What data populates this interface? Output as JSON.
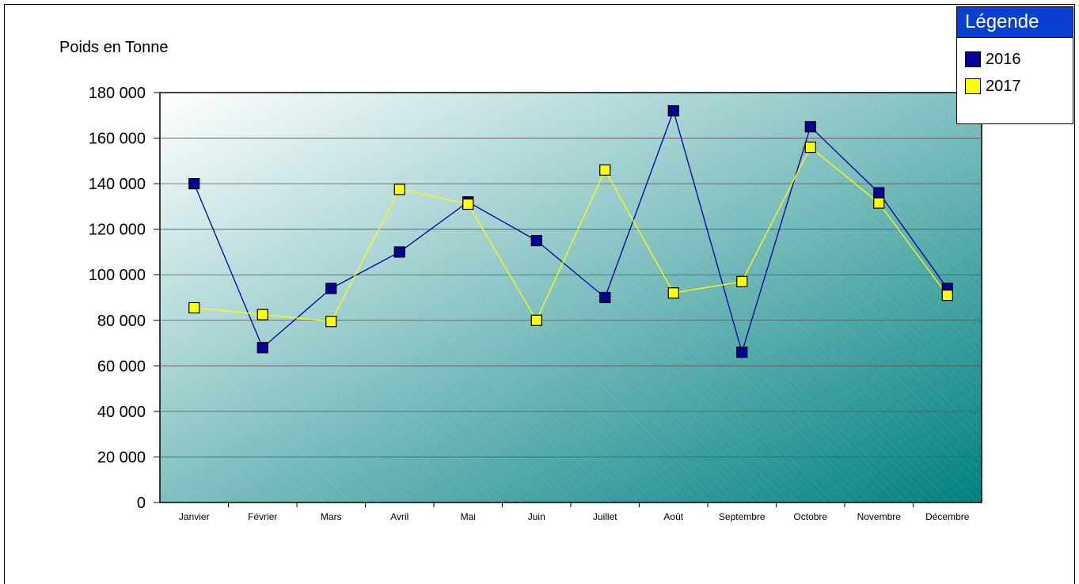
{
  "chart_data": {
    "type": "line",
    "ylabel": "Poids en Tonne",
    "categories": [
      "Janvier",
      "Février",
      "Mars",
      "Avril",
      "Mai",
      "Juin",
      "Juillet",
      "Août",
      "Septembre",
      "Octobre",
      "Novembre",
      "Décembre"
    ],
    "y_ticks": [
      "0",
      "20 000",
      "40 000",
      "60 000",
      "80 000",
      "100 000",
      "120 000",
      "140 000",
      "160 000",
      "180 000"
    ],
    "ylim": [
      0,
      180000
    ],
    "grid": true,
    "legend_position": "top-right",
    "series": [
      {
        "name": "2016",
        "color": "#000099",
        "values": [
          140000,
          68000,
          94000,
          110000,
          132000,
          115000,
          90000,
          172000,
          66000,
          165000,
          136000,
          94000
        ]
      },
      {
        "name": "2017",
        "color": "#ffff00",
        "values": [
          85500,
          82500,
          79500,
          137500,
          131000,
          80000,
          146000,
          92000,
          97000,
          156000,
          131500,
          91000
        ]
      }
    ]
  },
  "legend": {
    "title": "Légende",
    "title_color": "#0a3fd3"
  },
  "colors": {
    "plot_gradient_start": "#ffffff",
    "plot_gradient_end": "#008080"
  }
}
